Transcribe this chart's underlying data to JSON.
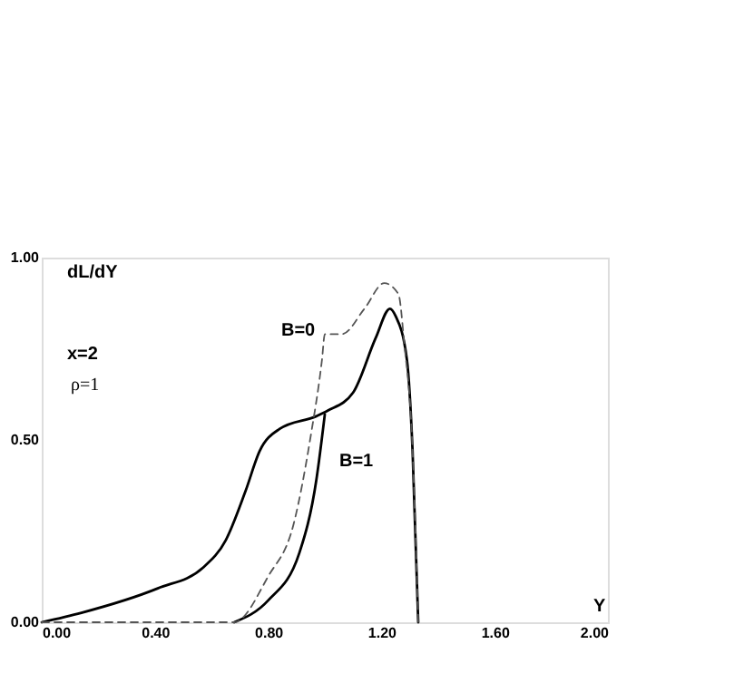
{
  "chart_data": {
    "type": "line",
    "xlabel": "Y",
    "ylabel": "dL/dY",
    "xlim": [
      0,
      2
    ],
    "ylim": [
      0,
      1
    ],
    "xticks": [
      {
        "value": 0,
        "label": "0.00"
      },
      {
        "value": 0.4,
        "label": "0.40"
      },
      {
        "value": 0.8,
        "label": "0.80"
      },
      {
        "value": 1.2,
        "label": "1.20"
      },
      {
        "value": 1.6,
        "label": "1.60"
      },
      {
        "value": 2,
        "label": "2.00"
      }
    ],
    "yticks": [
      {
        "value": 0,
        "label": "0.00"
      },
      {
        "value": 0.5,
        "label": "0.50"
      },
      {
        "value": 1,
        "label": "1.00"
      }
    ],
    "grid": false,
    "marker": "none",
    "series": [
      {
        "color": "#000000",
        "line_style": "solid",
        "x": [
          0,
          0.14,
          0.41,
          0.57,
          0.65,
          0.72,
          0.77,
          0.84,
          0.97,
          1.01,
          1.1,
          1.18,
          1.23,
          1.25,
          1.29,
          1.31,
          1.33
        ],
        "values": [
          0,
          0.026,
          0.093,
          0.15,
          0.225,
          0.36,
          0.47,
          0.53,
          0.565,
          0.58,
          0.63,
          0.78,
          0.86,
          0.84,
          0.72,
          0.47,
          0
        ]
      },
      {
        "color": "#000000",
        "line_style": "solid",
        "x": [
          0.68,
          0.8,
          0.91,
          0.97,
          1.0
        ],
        "values": [
          0,
          0.06,
          0.19,
          0.39,
          0.57
        ]
      },
      {
        "color": "#555555",
        "line_style": "dashed",
        "x": [
          0,
          0.68,
          0.8,
          0.89,
          0.95,
          0.99,
          1.0,
          1.06,
          1.14,
          1.21,
          1.26,
          1.28,
          1.31,
          1.33
        ],
        "values": [
          0,
          0,
          0.126,
          0.27,
          0.51,
          0.72,
          0.79,
          0.79,
          0.86,
          0.93,
          0.9,
          0.77,
          0.47,
          0
        ]
      }
    ],
    "annotations": [
      "x=2",
      "ρ=1",
      "B=0",
      "B=1"
    ]
  }
}
